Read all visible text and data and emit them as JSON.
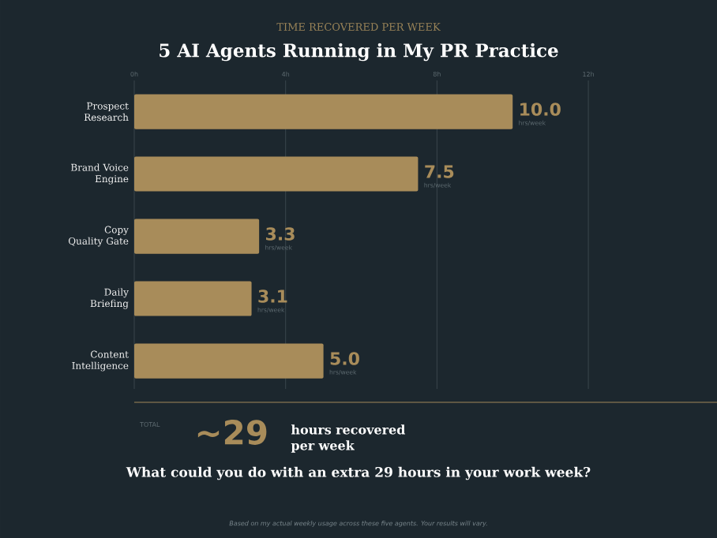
{
  "chart_data": {
    "type": "bar",
    "orientation": "horizontal",
    "subtitle": "TIME RECOVERED PER WEEK",
    "title": "5 AI Agents Running in My PR Practice",
    "categories": [
      "Prospect Research",
      "Brand Voice Engine",
      "Copy Quality Gate",
      "Daily Briefing",
      "Content Intelligence"
    ],
    "values": [
      10.0,
      7.5,
      3.3,
      3.1,
      5.0
    ],
    "value_labels": [
      "10.0",
      "7.5",
      "3.3",
      "3.1",
      "5.0"
    ],
    "color": "#a88c5a",
    "xlim": [
      0,
      15.4
    ],
    "xticks": [
      {
        "value": 0,
        "label": "0h"
      },
      {
        "value": 4,
        "label": "4h"
      },
      {
        "value": 8,
        "label": "8h"
      },
      {
        "value": 12,
        "label": "12h"
      }
    ],
    "grid": "x",
    "annotations": [
      {
        "text": "hrs/week",
        "x": 10.0,
        "y": "Prospect Research"
      },
      {
        "text": "hrs/week",
        "x": 7.5,
        "y": "Brand Voice Engine"
      },
      {
        "text": "hrs/week",
        "x": 3.3,
        "y": "Copy Quality Gate"
      },
      {
        "text": "hrs/week",
        "x": 3.1,
        "y": "Daily Briefing"
      },
      {
        "text": "hrs/week",
        "x": 5.0,
        "y": "Content Intelligence"
      },
      "TOTAL",
      "~29",
      "hours recovered per week",
      "What could you do with an extra 29 hours in your work week?",
      "Based on my actual weekly usage across these five agents. Your results will vary."
    ]
  }
}
